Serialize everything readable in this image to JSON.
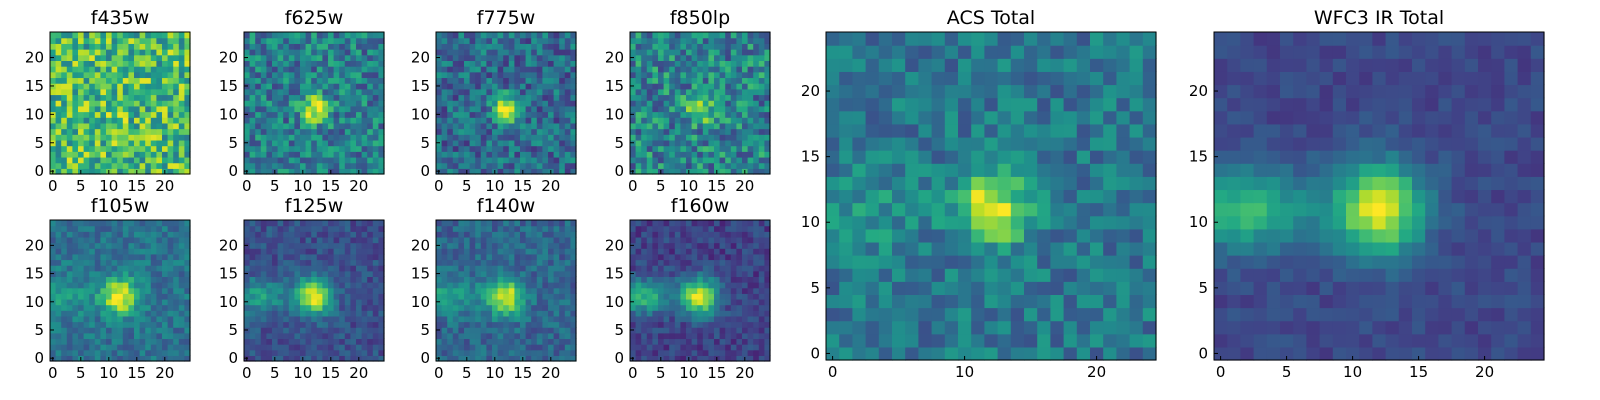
{
  "chart_data": {
    "type": "heatmap",
    "colormap": "viridis",
    "grid": false,
    "grid_size": 25,
    "panels": [
      {
        "id": "f435w",
        "title": "f435w",
        "xlim": [
          0,
          24
        ],
        "ylim": [
          0,
          24
        ],
        "xticks": [
          "0",
          "5",
          "10",
          "15",
          "20"
        ],
        "yticks": [
          "0",
          "5",
          "10",
          "15",
          "20"
        ],
        "source": {
          "cx": 12,
          "cy": 11,
          "sigma": 1.2,
          "peak": 0.25
        },
        "background": 0.68,
        "noise": 0.28,
        "extended": 0
      },
      {
        "id": "f625w",
        "title": "f625w",
        "xlim": [
          0,
          24
        ],
        "ylim": [
          0,
          24
        ],
        "xticks": [
          "0",
          "5",
          "10",
          "15",
          "20"
        ],
        "yticks": [
          "0",
          "5",
          "10",
          "15",
          "20"
        ],
        "source": {
          "cx": 12,
          "cy": 11,
          "sigma": 1.6,
          "peak": 0.6
        },
        "background": 0.42,
        "noise": 0.22,
        "extended": 0
      },
      {
        "id": "f775w",
        "title": "f775w",
        "xlim": [
          0,
          24
        ],
        "ylim": [
          0,
          24
        ],
        "xticks": [
          "0",
          "5",
          "10",
          "15",
          "20"
        ],
        "yticks": [
          "0",
          "5",
          "10",
          "15",
          "20"
        ],
        "source": {
          "cx": 12,
          "cy": 11,
          "sigma": 1.6,
          "peak": 0.7
        },
        "background": 0.35,
        "noise": 0.2,
        "extended": 0
      },
      {
        "id": "f850lp",
        "title": "f850lp",
        "xlim": [
          0,
          24
        ],
        "ylim": [
          0,
          24
        ],
        "xticks": [
          "0",
          "5",
          "10",
          "15",
          "20"
        ],
        "yticks": [
          "0",
          "5",
          "10",
          "15",
          "20"
        ],
        "source": {
          "cx": 12,
          "cy": 11,
          "sigma": 1.6,
          "peak": 0.5
        },
        "background": 0.45,
        "noise": 0.25,
        "extended": 0
      },
      {
        "id": "f105w",
        "title": "f105w",
        "xlim": [
          0,
          24
        ],
        "ylim": [
          0,
          24
        ],
        "xticks": [
          "0",
          "5",
          "10",
          "15",
          "20"
        ],
        "yticks": [
          "0",
          "5",
          "10",
          "15",
          "20"
        ],
        "source": {
          "cx": 12,
          "cy": 11,
          "sigma": 2.2,
          "peak": 0.65
        },
        "background": 0.38,
        "noise": 0.12,
        "extended": 0.18
      },
      {
        "id": "f125w",
        "title": "f125w",
        "xlim": [
          0,
          24
        ],
        "ylim": [
          0,
          24
        ],
        "xticks": [
          "0",
          "5",
          "10",
          "15",
          "20"
        ],
        "yticks": [
          "0",
          "5",
          "10",
          "15",
          "20"
        ],
        "source": {
          "cx": 12,
          "cy": 11,
          "sigma": 2.3,
          "peak": 0.72
        },
        "background": 0.25,
        "noise": 0.1,
        "extended": 0.3
      },
      {
        "id": "f140w",
        "title": "f140w",
        "xlim": [
          0,
          24
        ],
        "ylim": [
          0,
          24
        ],
        "xticks": [
          "0",
          "5",
          "10",
          "15",
          "20"
        ],
        "yticks": [
          "0",
          "5",
          "10",
          "15",
          "20"
        ],
        "source": {
          "cx": 12,
          "cy": 11,
          "sigma": 2.2,
          "peak": 0.65
        },
        "background": 0.33,
        "noise": 0.12,
        "extended": 0.25
      },
      {
        "id": "f160w",
        "title": "f160w",
        "xlim": [
          0,
          24
        ],
        "ylim": [
          0,
          24
        ],
        "xticks": [
          "0",
          "5",
          "10",
          "15",
          "20"
        ],
        "yticks": [
          "0",
          "5",
          "10",
          "15",
          "20"
        ],
        "source": {
          "cx": 12,
          "cy": 11,
          "sigma": 2.3,
          "peak": 0.75
        },
        "background": 0.2,
        "noise": 0.1,
        "extended": 0.45
      },
      {
        "id": "acs-total",
        "title": "ACS Total",
        "xlim": [
          0,
          24
        ],
        "ylim": [
          0,
          24
        ],
        "xticks": [
          "0",
          "10",
          "20"
        ],
        "yticks": [
          "0",
          "5",
          "10",
          "15",
          "20"
        ],
        "source": {
          "cx": 12,
          "cy": 11,
          "sigma": 1.8,
          "peak": 0.62
        },
        "background": 0.4,
        "noise": 0.15,
        "extended": 0.12
      },
      {
        "id": "wfc3-ir-total",
        "title": "WFC3 IR Total",
        "xlim": [
          0,
          24
        ],
        "ylim": [
          0,
          24
        ],
        "xticks": [
          "0",
          "5",
          "10",
          "15",
          "20"
        ],
        "yticks": [
          "0",
          "5",
          "10",
          "15",
          "20"
        ],
        "source": {
          "cx": 12,
          "cy": 11,
          "sigma": 2.4,
          "peak": 0.75
        },
        "background": 0.22,
        "noise": 0.06,
        "extended": 0.45
      }
    ]
  }
}
